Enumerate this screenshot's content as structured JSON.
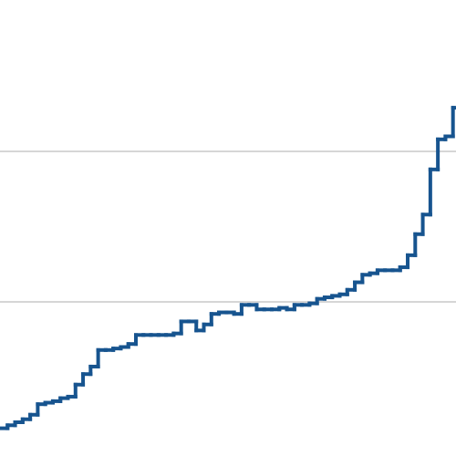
{
  "chart_data": {
    "type": "step",
    "x": [
      0,
      1,
      2,
      3,
      4,
      5,
      6,
      7,
      8,
      9,
      10,
      11,
      12,
      13,
      14,
      15,
      16,
      17,
      18,
      19,
      20,
      21,
      22,
      23,
      24,
      25,
      26,
      27,
      28,
      29,
      30,
      31,
      32,
      33,
      34,
      35,
      36,
      37,
      38,
      39,
      40,
      41,
      42,
      43,
      44,
      45,
      46,
      47,
      48,
      49,
      50,
      51,
      52,
      53,
      54,
      55,
      56,
      57,
      58,
      59,
      60
    ],
    "values": [
      0.16,
      0.18,
      0.2,
      0.22,
      0.25,
      0.32,
      0.33,
      0.34,
      0.36,
      0.37,
      0.45,
      0.52,
      0.57,
      0.68,
      0.68,
      0.69,
      0.7,
      0.72,
      0.78,
      0.78,
      0.78,
      0.78,
      0.78,
      0.79,
      0.87,
      0.87,
      0.81,
      0.85,
      0.92,
      0.93,
      0.93,
      0.92,
      0.98,
      0.98,
      0.95,
      0.95,
      0.95,
      0.96,
      0.95,
      0.98,
      0.98,
      0.99,
      1.02,
      1.03,
      1.04,
      1.05,
      1.08,
      1.13,
      1.18,
      1.19,
      1.21,
      1.21,
      1.21,
      1.23,
      1.31,
      1.45,
      1.58,
      1.88,
      2.08,
      2.1,
      2.29
    ],
    "color": "#17548f",
    "xlim": [
      0,
      60.4
    ],
    "ylim": [
      0,
      3
    ],
    "yticks": [
      1,
      2
    ],
    "grid": true
  }
}
